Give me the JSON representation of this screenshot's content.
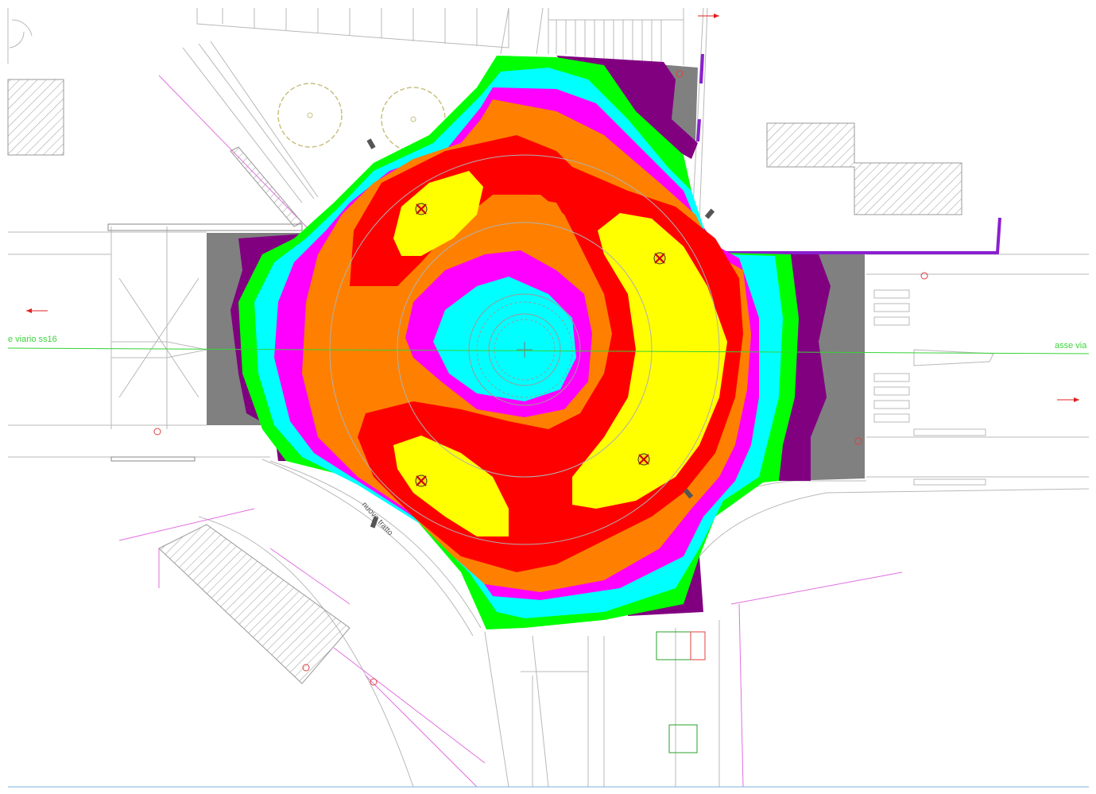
{
  "map": {
    "labels": {
      "axis_left": "e viario ss16",
      "axis_right": "asse via",
      "road_name": "nuovo tratto"
    },
    "illuminance_scale": {
      "colors": [
        "#808080",
        "#800080",
        "#00ff00",
        "#00ffff",
        "#ff00ff",
        "#ff8000",
        "#ff0000",
        "#ffff00"
      ],
      "order": "gray-lowest-to-yellow-highest"
    },
    "luminaires_count": 4,
    "luminaire_icon": "luminaire-icon",
    "tree_icon": "tree-icon"
  }
}
